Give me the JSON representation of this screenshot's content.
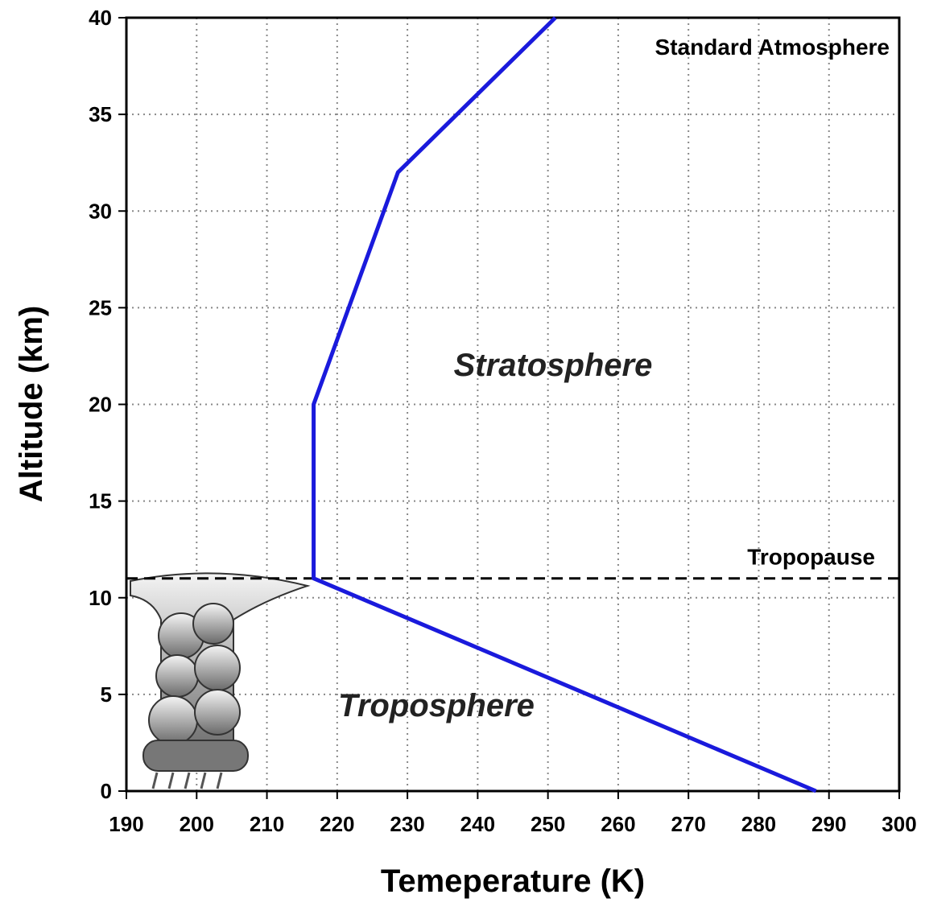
{
  "chart_data": {
    "type": "line",
    "x_label": "Temeperature (K)",
    "y_label": "Altitude (km)",
    "series": [
      {
        "name": "Standard Atmosphere",
        "color": "#1a1adc",
        "x": [
          288.15,
          216.65,
          216.65,
          228.65,
          251.05
        ],
        "values": [
          0,
          11,
          20,
          32,
          40
        ]
      }
    ],
    "xlim": [
      190,
      300
    ],
    "ylim": [
      0,
      40
    ],
    "xticks": [
      190,
      200,
      210,
      220,
      230,
      240,
      250,
      260,
      270,
      280,
      290,
      300
    ],
    "yticks": [
      0,
      5,
      10,
      15,
      20,
      25,
      30,
      35,
      40
    ],
    "grid": true,
    "reference_lines": [
      {
        "y": 11,
        "label": "Tropopause"
      }
    ],
    "annotations": [
      "Stratosphere",
      "Troposphere"
    ]
  }
}
